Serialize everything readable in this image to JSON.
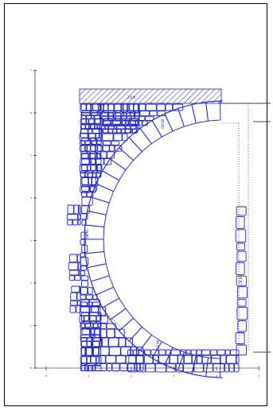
{
  "drawing": {
    "stroke_color": "#1e22cc",
    "axis_color": "#000000",
    "frame_color": "#000000",
    "hatch_label": "2500",
    "stone_tags": [
      "CB 83",
      "GB 88",
      "CB 89",
      "CB 81",
      "GB 86",
      "CB 80"
    ],
    "y_ticks": [
      "0",
      "1",
      "2",
      "3",
      "4",
      "5",
      "6",
      "7"
    ],
    "x_ticks": [
      "0",
      "1",
      "2",
      "3",
      "4",
      "5"
    ]
  }
}
